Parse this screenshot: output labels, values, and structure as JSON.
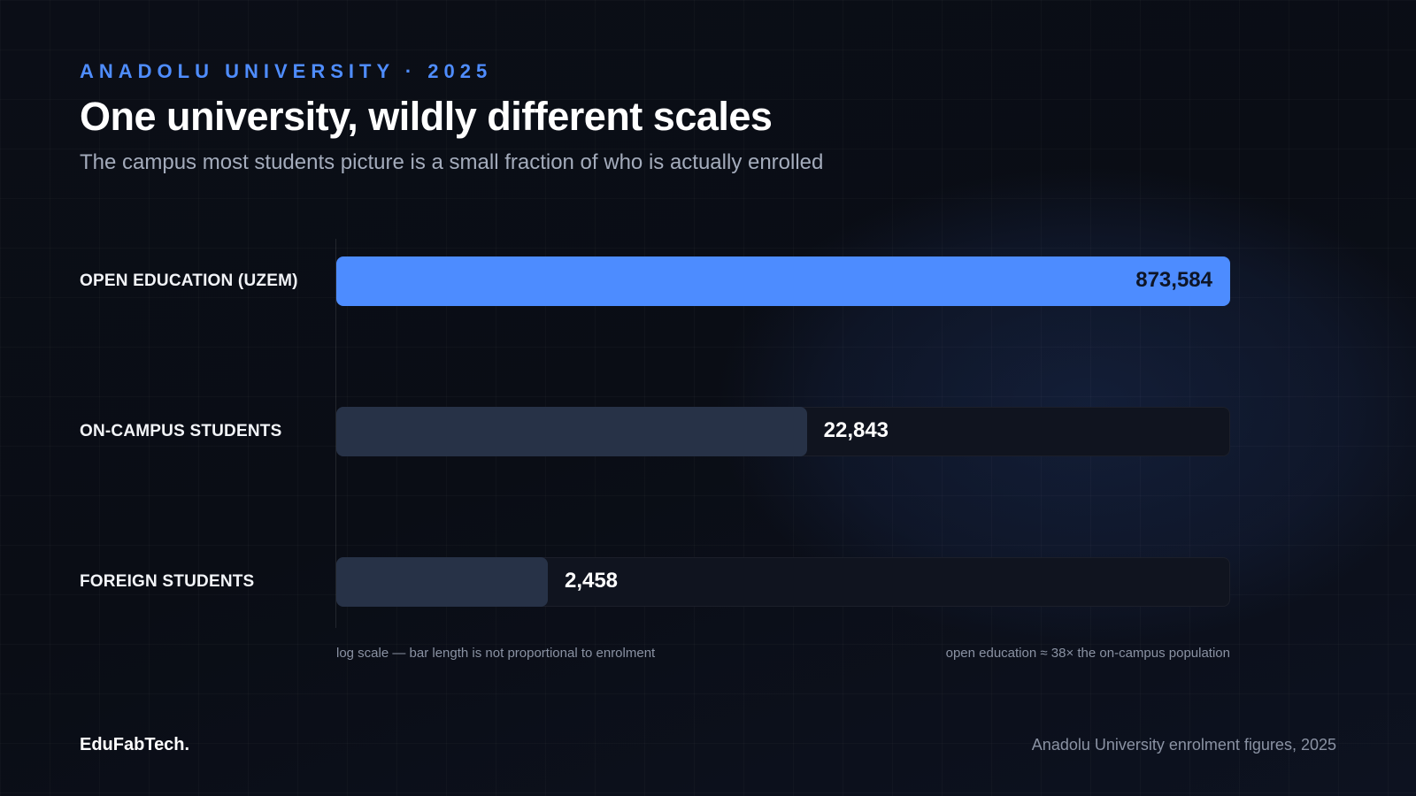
{
  "header": {
    "eyebrow": "ANADOLU UNIVERSITY · 2025",
    "title": "One university, wildly different scales",
    "subtitle": "The campus most students picture is a small fraction of who is actually enrolled"
  },
  "chart_data": {
    "type": "bar",
    "orientation": "horizontal",
    "scale": "log",
    "categories": [
      "OPEN EDUCATION (UZEM)",
      "ON-CAMPUS STUDENTS",
      "FOREIGN STUDENTS"
    ],
    "values": [
      873584,
      22843,
      2458
    ],
    "value_labels": [
      "873,584",
      "22,843",
      "2,458"
    ],
    "highlight": "OPEN EDUCATION (UZEM)",
    "colors": {
      "highlight": "#4d8cff",
      "default": "#273247"
    },
    "grid": false,
    "legend": "none"
  },
  "notes": {
    "scale_note": "log scale — bar length is not proportional to enrolment",
    "ratio_note": "open education ≈ 38× the on-campus population"
  },
  "footer": {
    "brand": "EduFabTech.",
    "source": "Anadolu University enrolment figures, 2025"
  },
  "colors": {
    "accent": "#4f8dff",
    "background": "#0a0d16"
  }
}
